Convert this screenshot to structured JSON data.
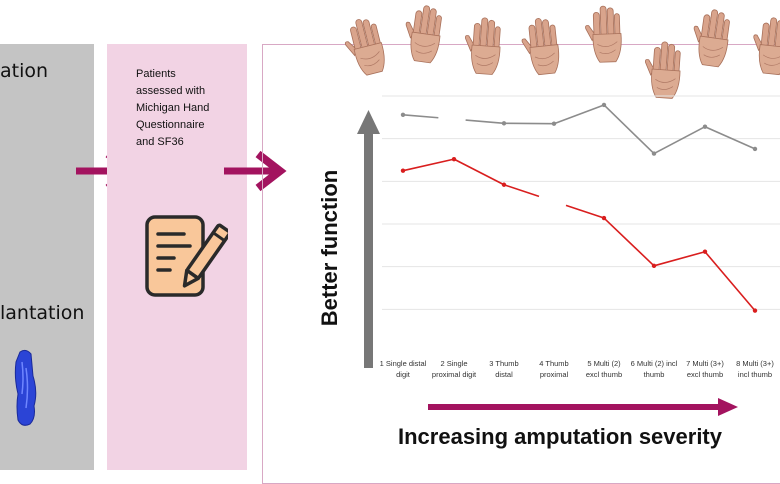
{
  "left_panel": {
    "label_top": "ation",
    "label_bottom": "lantation"
  },
  "middle_panel": {
    "text_lines": [
      "Patients",
      "assessed with",
      "Michigan Hand",
      "Questionnaire",
      "and SF36"
    ],
    "icon": "document-pen-icon"
  },
  "diagram": {
    "y_axis_title": "Better function",
    "x_axis_title": "Increasing amputation severity"
  },
  "colors": {
    "grey_panel": "#c4c4c4",
    "pink_panel": "#f2d3e4",
    "arrow": "#a3135f",
    "grey_series": "#8c8c8c",
    "red_series": "#d91e1e",
    "axis_arrow": "#777777"
  },
  "chart_data": {
    "type": "line",
    "categories": [
      [
        "1 Single distal",
        "digit"
      ],
      [
        "2 Single",
        "proximal digit"
      ],
      [
        "3 Thumb",
        "distal"
      ],
      [
        "4 Thumb",
        "proximal"
      ],
      [
        "5 Multi (2)",
        "excl thumb"
      ],
      [
        "6 Multi (2) incl",
        "thumb"
      ],
      [
        "7 Multi (3+)",
        "excl thumb"
      ],
      [
        "8 Multi (3+)",
        "incl thumb"
      ]
    ],
    "ylim": [
      0,
      6
    ],
    "grid": true,
    "series": [
      {
        "values": [
          5.56,
          null,
          5.36,
          5.35,
          5.79,
          4.65,
          5.28,
          4.76
        ],
        "segment_breaks": [
          0
        ]
      },
      {
        "values": [
          4.25,
          4.52,
          3.92,
          null,
          3.14,
          2.02,
          2.35,
          0.97
        ],
        "segment_breaks": [
          2
        ]
      }
    ]
  }
}
